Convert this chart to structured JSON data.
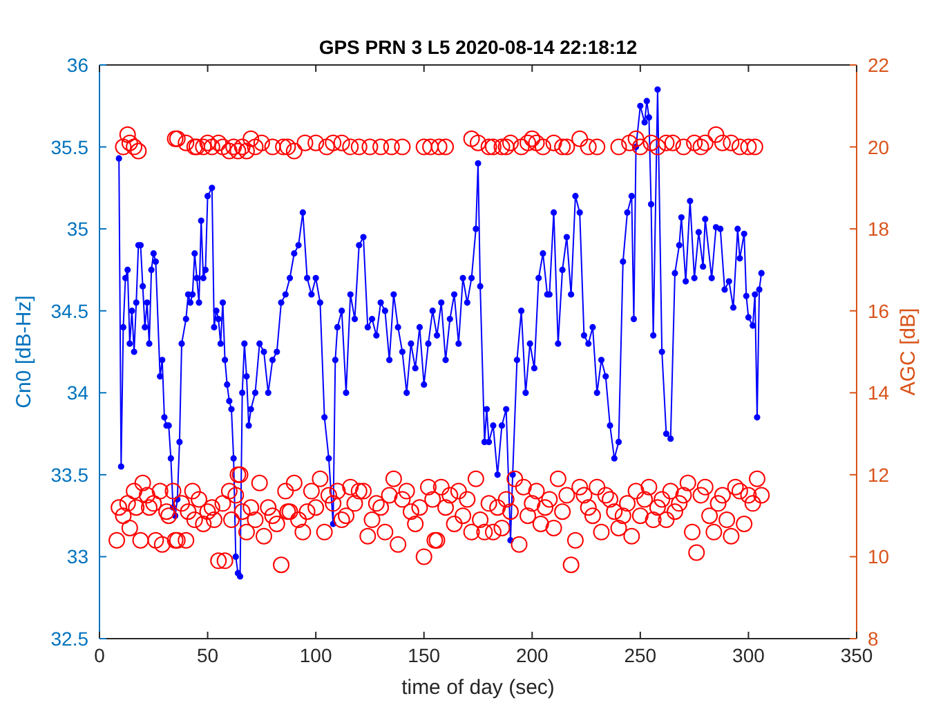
{
  "chart_data": {
    "type": "line",
    "title": "GPS PRN 3 L5 2020-08-14 22:18:12",
    "xlabel": "time of day (sec)",
    "ylabel": "Cn0 [dB-Hz]",
    "y2label": "AGC [dB]",
    "xlim": [
      0,
      350
    ],
    "xticks": [
      0,
      50,
      100,
      150,
      200,
      250,
      300,
      350
    ],
    "ylim": [
      32.5,
      36
    ],
    "yticks": [
      32.5,
      33,
      33.5,
      34,
      34.5,
      35,
      35.5,
      36
    ],
    "y2lim": [
      8,
      22
    ],
    "y2ticks": [
      8,
      10,
      12,
      14,
      16,
      18,
      20,
      22
    ],
    "grid": false,
    "series": [
      {
        "color": "#0000ff",
        "marker": "circle",
        "line_style": "solid",
        "x": [
          9,
          10,
          11,
          12,
          13,
          14,
          15,
          16,
          17,
          18,
          19,
          20,
          21,
          22,
          23,
          24,
          25,
          26,
          28,
          29,
          30,
          31,
          32,
          33,
          34,
          35,
          36,
          37,
          38,
          40,
          41,
          42,
          43,
          44,
          45,
          46,
          47,
          48,
          49,
          50,
          52,
          53,
          54,
          55,
          56,
          57,
          58,
          59,
          60,
          61,
          62,
          63,
          64,
          65,
          66,
          67,
          68,
          69,
          70,
          72,
          74,
          76,
          78,
          80,
          82,
          84,
          86,
          88,
          90,
          92,
          94,
          96,
          98,
          100,
          102,
          104,
          106,
          108,
          109,
          110,
          112,
          114,
          116,
          118,
          120,
          122,
          124,
          126,
          128,
          130,
          132,
          134,
          136,
          138,
          140,
          142,
          144,
          146,
          148,
          150,
          152,
          154,
          156,
          158,
          160,
          162,
          164,
          166,
          168,
          170,
          172,
          174,
          175,
          176,
          178,
          179,
          180,
          182,
          184,
          186,
          188,
          190,
          191,
          193,
          195,
          197,
          199,
          201,
          203,
          205,
          207,
          208,
          210,
          212,
          214,
          216,
          218,
          220,
          222,
          224,
          226,
          228,
          230,
          232,
          234,
          236,
          238,
          240,
          242,
          244,
          246,
          247,
          248,
          250,
          252,
          253,
          254,
          255,
          256,
          258,
          260,
          262,
          264,
          266,
          268,
          269,
          271,
          273,
          275,
          277,
          279,
          280,
          283,
          285,
          287,
          289,
          291,
          293,
          295,
          296,
          298,
          299,
          300,
          302,
          303,
          304,
          305,
          306
        ],
        "values": [
          35.43,
          33.55,
          34.4,
          34.7,
          34.75,
          34.3,
          34.5,
          34.25,
          34.55,
          34.9,
          34.9,
          34.65,
          34.4,
          34.55,
          34.3,
          34.75,
          34.85,
          34.8,
          34.1,
          34.2,
          33.85,
          33.8,
          33.8,
          33.6,
          33.3,
          33.25,
          33.35,
          33.7,
          34.3,
          34.45,
          34.6,
          34.55,
          34.6,
          34.85,
          34.7,
          34.55,
          35.05,
          34.7,
          34.75,
          35.2,
          35.25,
          34.4,
          34.5,
          34.45,
          34.3,
          34.55,
          34.2,
          34.05,
          33.95,
          33.9,
          33.6,
          33.0,
          32.9,
          32.88,
          34.0,
          34.3,
          34.1,
          33.8,
          33.9,
          34.0,
          34.3,
          34.25,
          34.0,
          34.2,
          34.25,
          34.55,
          34.6,
          34.7,
          34.85,
          34.9,
          35.1,
          34.7,
          34.6,
          34.7,
          34.55,
          33.85,
          33.6,
          33.2,
          34.2,
          34.4,
          34.5,
          34.0,
          34.6,
          34.45,
          34.9,
          34.95,
          34.4,
          34.45,
          34.35,
          34.55,
          34.5,
          34.2,
          34.6,
          34.4,
          34.25,
          34.0,
          34.3,
          34.15,
          34.4,
          34.05,
          34.3,
          34.5,
          34.35,
          34.55,
          34.2,
          34.45,
          34.6,
          34.3,
          34.7,
          34.55,
          34.7,
          35.0,
          35.4,
          34.65,
          33.7,
          33.9,
          33.7,
          33.8,
          33.5,
          33.8,
          33.9,
          33.1,
          33.5,
          34.2,
          34.5,
          34.0,
          34.3,
          34.15,
          34.7,
          34.85,
          34.6,
          34.6,
          35.1,
          34.3,
          34.75,
          34.95,
          34.6,
          35.2,
          35.1,
          34.35,
          34.3,
          34.4,
          34.0,
          34.2,
          34.1,
          33.8,
          33.6,
          33.7,
          34.8,
          35.1,
          35.2,
          34.45,
          35.5,
          35.75,
          35.65,
          35.78,
          35.68,
          35.15,
          34.35,
          35.85,
          34.25,
          33.75,
          33.72,
          34.73,
          34.9,
          35.07,
          34.68,
          35.17,
          34.7,
          34.98,
          34.77,
          35.06,
          34.7,
          35.01,
          35.0,
          34.63,
          34.68,
          34.52,
          35.0,
          34.82,
          34.97,
          34.59,
          34.46,
          34.41,
          34.6,
          33.85,
          34.63,
          34.73
        ]
      },
      {
        "type": "scatter",
        "axis": "y2",
        "color": "#ff0000",
        "marker": "circle",
        "x": [
          8,
          9,
          11,
          13,
          14,
          16,
          17,
          19,
          20,
          22,
          23,
          25,
          26,
          28,
          29,
          31,
          32,
          34,
          35,
          36,
          38,
          40,
          41,
          43,
          44,
          46,
          48,
          50,
          52,
          53,
          55,
          57,
          58,
          60,
          61,
          63,
          64,
          65,
          66,
          68,
          70,
          72,
          74,
          76,
          78,
          80,
          82,
          84,
          86,
          87,
          88,
          90,
          92,
          94,
          96,
          98,
          100,
          102,
          104,
          106,
          108,
          110,
          112,
          114,
          116,
          118,
          120,
          122,
          124,
          126,
          128,
          130,
          132,
          134,
          136,
          138,
          140,
          142,
          144,
          146,
          148,
          150,
          152,
          154,
          155,
          156,
          158,
          160,
          162,
          164,
          166,
          168,
          170,
          172,
          174,
          176,
          178,
          180,
          182,
          184,
          186,
          188,
          190,
          192,
          194,
          196,
          198,
          200,
          202,
          204,
          206,
          208,
          210,
          212,
          214,
          216,
          218,
          220,
          222,
          224,
          226,
          228,
          230,
          232,
          234,
          236,
          238,
          240,
          242,
          244,
          246,
          248,
          250,
          252,
          254,
          256,
          258,
          260,
          262,
          264,
          266,
          268,
          270,
          272,
          274,
          276,
          278,
          280,
          282,
          284,
          286,
          288,
          290,
          292,
          294,
          296,
          298,
          300,
          302,
          304,
          306,
          11,
          13,
          14,
          16,
          18,
          35,
          36,
          40,
          44,
          45,
          48,
          50,
          52,
          55,
          57,
          60,
          62,
          64,
          66,
          68,
          70,
          72,
          75,
          80,
          85,
          87,
          90,
          95,
          100,
          105,
          108,
          112,
          116,
          120,
          125,
          130,
          135,
          140,
          150,
          153,
          157,
          160,
          172,
          175,
          180,
          182,
          186,
          188,
          190,
          195,
          198,
          200,
          202,
          205,
          210,
          214,
          216,
          222,
          226,
          230,
          240,
          245,
          248,
          250,
          255,
          258,
          262,
          265,
          270,
          275,
          278,
          280,
          285,
          288,
          292,
          296,
          300,
          303
        ],
        "values": [
          10.4,
          11.2,
          11.0,
          11.3,
          10.7,
          11.6,
          11.2,
          10.4,
          11.8,
          11.5,
          11.2,
          11.3,
          10.4,
          11.6,
          10.3,
          11.1,
          11.0,
          11.6,
          10.4,
          10.4,
          11.3,
          10.4,
          11.1,
          11.6,
          10.9,
          11.4,
          10.8,
          11.1,
          11.2,
          10.9,
          9.9,
          11.3,
          9.9,
          11.6,
          10.9,
          11.5,
          12.0,
          12.0,
          11.1,
          10.6,
          11.2,
          10.9,
          11.8,
          10.5,
          11.2,
          11.0,
          10.8,
          9.8,
          11.6,
          11.1,
          11.1,
          11.8,
          10.9,
          10.6,
          11.1,
          11.6,
          11.2,
          11.9,
          10.6,
          11.5,
          11.3,
          11.6,
          10.9,
          11.0,
          11.7,
          11.3,
          11.6,
          11.6,
          10.5,
          10.9,
          11.3,
          11.2,
          10.6,
          11.5,
          11.9,
          10.3,
          11.4,
          11.6,
          11.1,
          10.8,
          11.2,
          10.0,
          11.7,
          11.4,
          10.4,
          10.4,
          11.7,
          11.2,
          11.5,
          10.8,
          11.6,
          11.0,
          11.4,
          10.6,
          11.9,
          10.9,
          10.6,
          11.3,
          10.6,
          11.2,
          10.7,
          11.4,
          11.1,
          11.9,
          10.3,
          11.7,
          11.0,
          11.3,
          11.6,
          10.8,
          11.2,
          11.4,
          10.7,
          11.9,
          11.1,
          11.5,
          9.8,
          10.4,
          11.7,
          11.5,
          11.2,
          11.0,
          11.7,
          10.6,
          11.5,
          11.4,
          11.1,
          10.7,
          11.0,
          11.3,
          10.5,
          11.6,
          11.0,
          11.4,
          11.7,
          10.9,
          11.2,
          11.4,
          10.9,
          11.6,
          11.1,
          11.3,
          11.5,
          11.8,
          10.6,
          10.1,
          11.5,
          11.7,
          11.0,
          10.6,
          11.3,
          11.5,
          10.9,
          10.5,
          11.7,
          11.6,
          10.8,
          11.5,
          11.3,
          11.9,
          11.5,
          20.0,
          20.3,
          20.1,
          20.0,
          19.9,
          20.2,
          20.2,
          20.1,
          20.0,
          20.0,
          20.0,
          20.1,
          20.0,
          20.1,
          20.0,
          19.9,
          20.0,
          19.9,
          20.0,
          19.9,
          20.2,
          20.0,
          20.1,
          20.0,
          20.0,
          20.0,
          19.9,
          20.1,
          20.1,
          20.0,
          20.1,
          20.1,
          20.0,
          20.0,
          20.0,
          20.0,
          20.0,
          20.0,
          20.0,
          20.0,
          20.0,
          20.0,
          20.2,
          20.1,
          20.0,
          20.0,
          20.0,
          20.0,
          20.1,
          20.0,
          20.1,
          20.2,
          20.1,
          20.0,
          20.1,
          20.0,
          20.0,
          20.2,
          20.0,
          20.0,
          20.0,
          20.1,
          20.2,
          20.0,
          20.1,
          20.0,
          20.1,
          20.1,
          20.0,
          20.1,
          20.0,
          20.1,
          20.3,
          20.1,
          20.1,
          20.0,
          20.0,
          20.0
        ]
      }
    ]
  }
}
